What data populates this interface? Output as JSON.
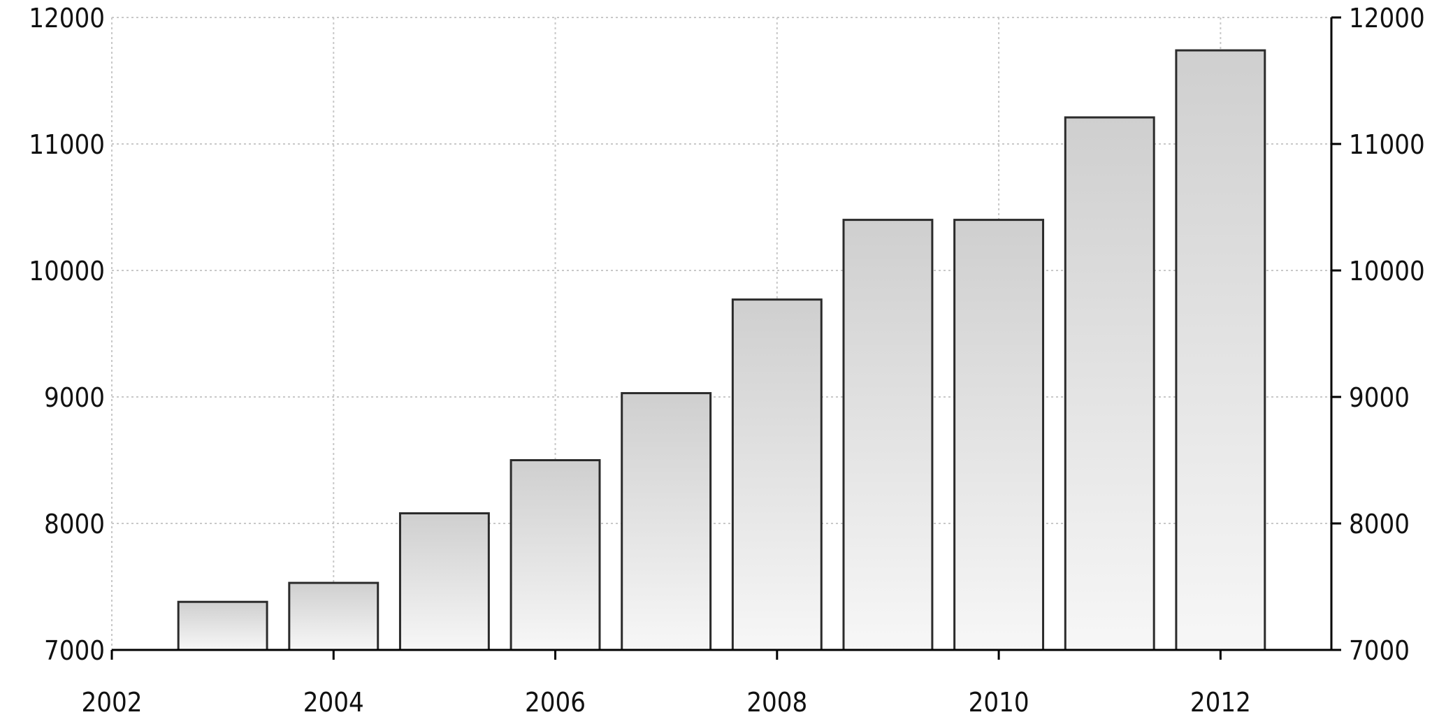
{
  "chart_data": {
    "type": "bar",
    "x": [
      2003,
      2004,
      2005,
      2006,
      2007,
      2008,
      2009,
      2010,
      2011,
      2012
    ],
    "values": [
      7380,
      7530,
      8080,
      8500,
      9030,
      9770,
      10400,
      10400,
      11210,
      11740
    ],
    "xlim": [
      2002,
      2013
    ],
    "ylim": [
      7000,
      12000
    ],
    "x_ticks": [
      "2002",
      "2004",
      "2006",
      "2008",
      "2010",
      "2012"
    ],
    "y_ticks": [
      "7000",
      "8000",
      "9000",
      "10000",
      "11000",
      "12000"
    ],
    "y_ticks_right": [
      "7000",
      "8000",
      "9000",
      "10000",
      "11000",
      "12000"
    ],
    "title": "",
    "xlabel": "",
    "ylabel": "",
    "grid": true,
    "legend": "none",
    "colors": {
      "bar_top": "#cfcfcf",
      "bar_bottom": "#f7f7f7",
      "bar_stroke": "#2b2b2b",
      "grid": "#c8c8c8",
      "axis": "#000000"
    }
  }
}
